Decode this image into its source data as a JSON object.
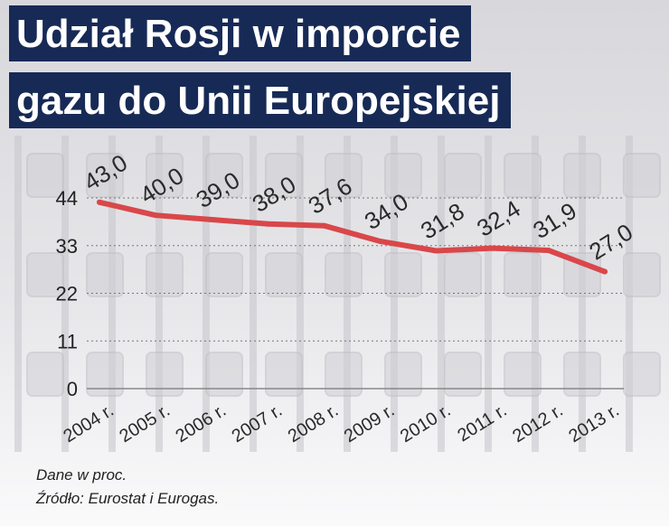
{
  "title_lines": [
    "Udział Rosji w imporcie",
    "gazu do Unii Europejskiej"
  ],
  "notes": [
    "Dane w proc.",
    "Źródło: Eurostat i Eurogas."
  ],
  "colors": {
    "title_bg": "#172a56",
    "title_text": "#ffffff",
    "line": "#d9474a",
    "text": "#222222"
  },
  "chart_data": {
    "type": "line",
    "title": "Udział Rosji w imporcie gazu do Unii Europejskiej",
    "categories": [
      "2004 r.",
      "2005 r.",
      "2006 r.",
      "2007 r.",
      "2008 r.",
      "2009 r.",
      "2010 r.",
      "2011 r.",
      "2012 r.",
      "2013 r."
    ],
    "series": [
      {
        "values": [
          43.0,
          40.0,
          39.0,
          38.0,
          37.6,
          34.0,
          31.8,
          32.4,
          31.9,
          27.0
        ],
        "labels": [
          "43,0",
          "40,0",
          "39,0",
          "38,0",
          "37,6",
          "34,0",
          "31,8",
          "32,4",
          "31,9",
          "27,0"
        ]
      }
    ],
    "yticks": [
      0,
      11,
      22,
      33,
      44
    ],
    "ylim": [
      0,
      44
    ],
    "grid": true,
    "xlabel": "",
    "ylabel": ""
  }
}
